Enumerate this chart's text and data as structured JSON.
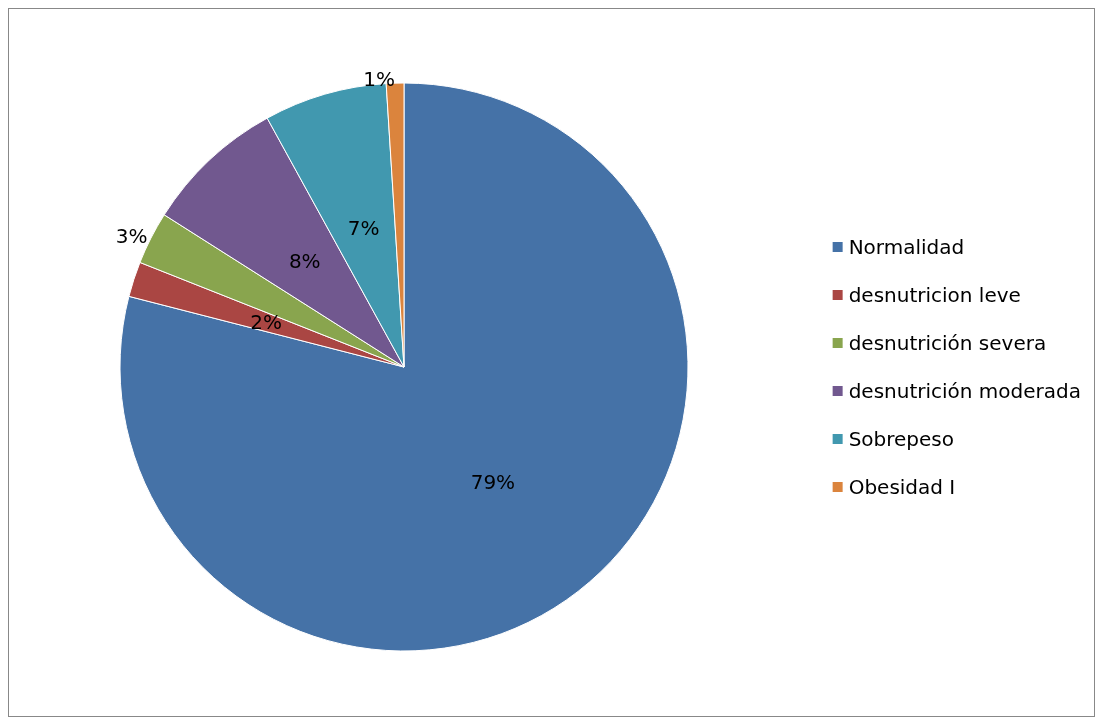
{
  "chart_data": {
    "type": "pie",
    "categories": [
      "Normalidad",
      "desnutricion leve",
      "desnutrición severa",
      "desnutrición moderada",
      "Sobrepeso",
      "Obesidad I"
    ],
    "values": [
      79,
      2,
      3,
      8,
      7,
      1
    ],
    "colors": [
      "#4572a7",
      "#aa4643",
      "#89a54e",
      "#71588f",
      "#4198af",
      "#db843d"
    ],
    "value_labels": [
      "79%",
      "2%",
      "3%",
      "8%",
      "7%",
      "1%"
    ],
    "legend": "right"
  }
}
